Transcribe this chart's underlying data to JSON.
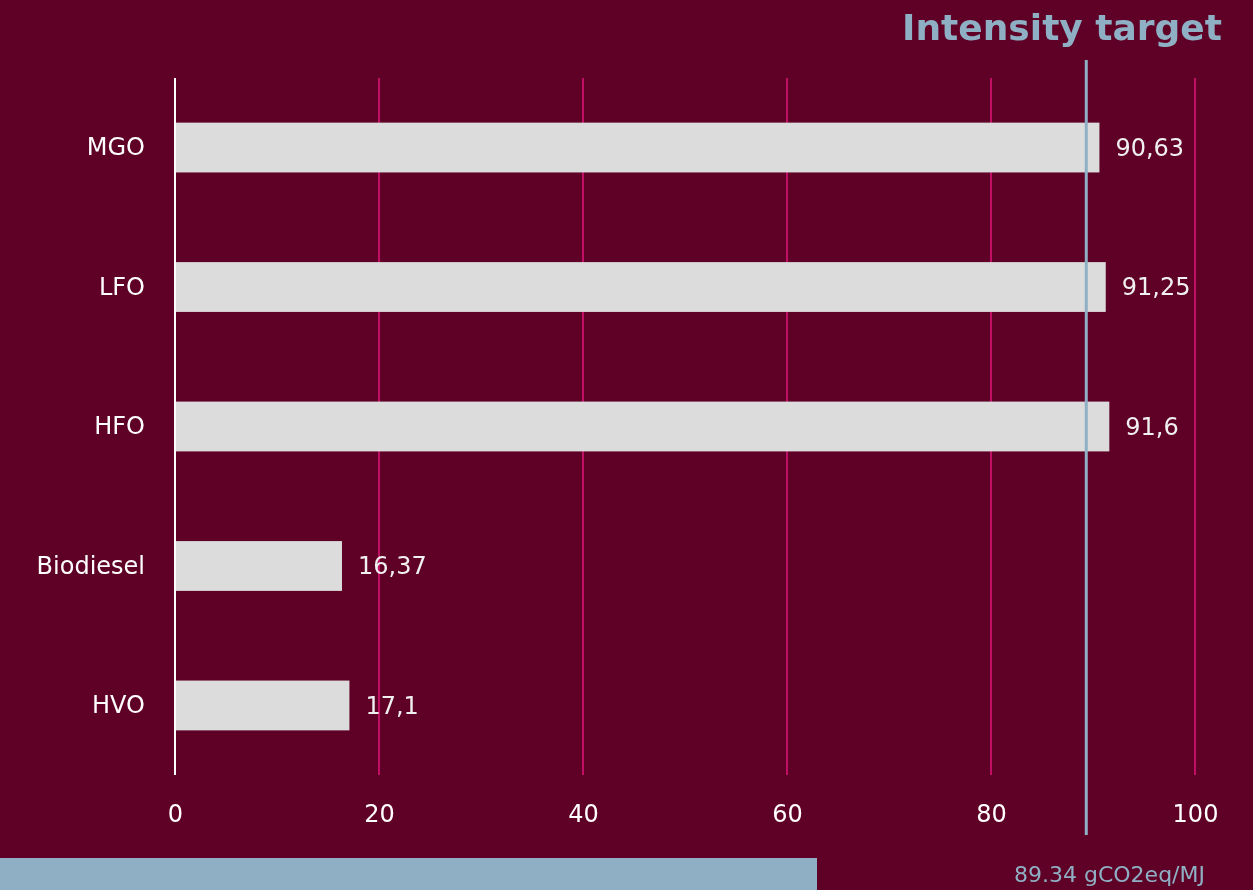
{
  "chart_data": {
    "type": "bar",
    "orientation": "horizontal",
    "categories": [
      "MGO",
      "LFO",
      "HFO",
      "Biodiesel",
      "HVO"
    ],
    "values": [
      90.63,
      91.25,
      91.6,
      16.37,
      17.1
    ],
    "value_labels": [
      "90,63",
      "91,25",
      "91,6",
      "16,37",
      "17,1"
    ],
    "color": "#dcdcdc",
    "xlim": [
      0,
      100
    ],
    "xticks": [
      0,
      20,
      40,
      60,
      80,
      100
    ],
    "grid": "x",
    "ref_lines": [
      {
        "axis": "x",
        "value": 89.34,
        "label": "Intensity target",
        "color": "#8fb0c4"
      }
    ],
    "annotations": [
      "89.34 gCO2eq/MJ"
    ]
  }
}
